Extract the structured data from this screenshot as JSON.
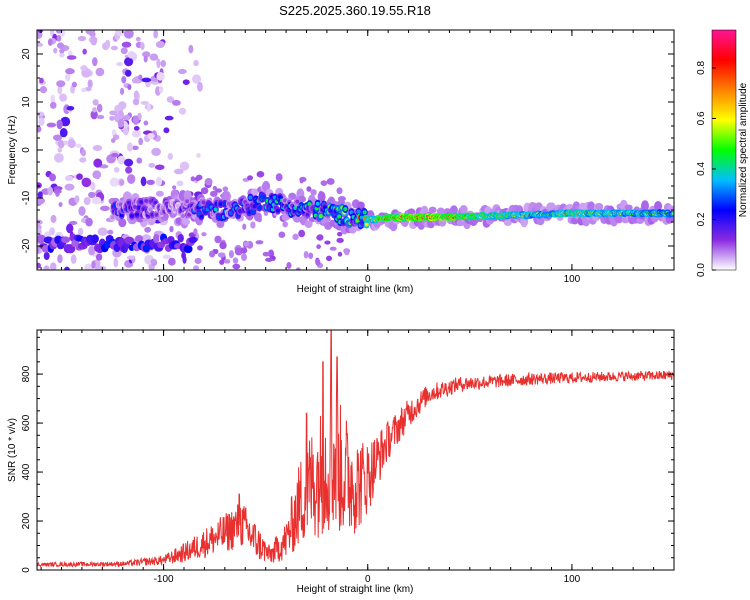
{
  "title": "S225.2025.360.19.55.R18",
  "chart_data": [
    {
      "type": "heatmap",
      "name": "spectrogram",
      "xlabel": "Height of straight line (km)",
      "ylabel": "Frequency (Hz)",
      "xlim": [
        -162,
        150
      ],
      "ylim": [
        -25,
        25
      ],
      "xticks": [
        -100,
        0,
        100
      ],
      "yticks": [
        -20,
        -10,
        0,
        10,
        20
      ],
      "xtick_labels": [
        "-100",
        "0",
        "100"
      ],
      "ytick_labels": [
        "-20",
        "-10",
        "0",
        "10",
        "20"
      ],
      "colorbar": {
        "label": "Normalized spectral amplitude",
        "range": [
          0.0,
          0.95
        ],
        "ticks": [
          0.0,
          0.2,
          0.4,
          0.6,
          0.8
        ],
        "tick_labels": [
          "0.0",
          "0.2",
          "0.4",
          "0.6",
          "0.8"
        ],
        "colors": [
          "#ffffff",
          "#8a2be2",
          "#0000ff",
          "#00bfff",
          "#00ff00",
          "#ffff00",
          "#ff8000",
          "#ff0000",
          "#ff1493"
        ]
      },
      "ridge": [
        {
          "x": -120,
          "f": -12.5,
          "amp": 0.2
        },
        {
          "x": -110,
          "f": -12.0,
          "amp": 0.15
        },
        {
          "x": -90,
          "f": -12.2,
          "amp": 0.15
        },
        {
          "x": -80,
          "f": -12.4,
          "amp": 0.3
        },
        {
          "x": -70,
          "f": -12.5,
          "amp": 0.25
        },
        {
          "x": -60,
          "f": -11.8,
          "amp": 0.3
        },
        {
          "x": -50,
          "f": -10.5,
          "amp": 0.35
        },
        {
          "x": -40,
          "f": -11.5,
          "amp": 0.3
        },
        {
          "x": -30,
          "f": -12.5,
          "amp": 0.35
        },
        {
          "x": -20,
          "f": -12.8,
          "amp": 0.4
        },
        {
          "x": -10,
          "f": -13.8,
          "amp": 0.45
        },
        {
          "x": 0,
          "f": -14.5,
          "amp": 0.6
        },
        {
          "x": 10,
          "f": -14.2,
          "amp": 0.8
        },
        {
          "x": 30,
          "f": -14.0,
          "amp": 0.85
        },
        {
          "x": 50,
          "f": -13.8,
          "amp": 0.7
        },
        {
          "x": 80,
          "f": -13.5,
          "amp": 0.55
        },
        {
          "x": 100,
          "f": -13.2,
          "amp": 0.6
        },
        {
          "x": 130,
          "f": -13.2,
          "amp": 0.55
        },
        {
          "x": 150,
          "f": -13.2,
          "amp": 0.5
        }
      ],
      "secondary_band": {
        "x_range": [
          -160,
          -85
        ],
        "f": -19.5,
        "amp": 0.2
      },
      "noise_region": {
        "x_range": [
          -162,
          -100
        ],
        "f_range": [
          -25,
          25
        ],
        "amp": 0.15
      }
    },
    {
      "type": "line",
      "name": "snr",
      "xlabel": "Height of straight line (km)",
      "ylabel": "SNR (10 * v/v)",
      "xlim": [
        -162,
        150
      ],
      "ylim": [
        0,
        980
      ],
      "xticks": [
        -100,
        0,
        100
      ],
      "yticks": [
        0,
        200,
        400,
        600,
        800
      ],
      "xtick_labels": [
        "-100",
        "0",
        "100"
      ],
      "ytick_labels": [
        "0",
        "200",
        "400",
        "600",
        "800"
      ],
      "color": "#e8302f",
      "envelope": [
        {
          "x": -162,
          "mean": 22,
          "amp": 8
        },
        {
          "x": -120,
          "mean": 25,
          "amp": 10
        },
        {
          "x": -100,
          "mean": 40,
          "amp": 20
        },
        {
          "x": -90,
          "mean": 70,
          "amp": 40
        },
        {
          "x": -80,
          "mean": 110,
          "amp": 60
        },
        {
          "x": -70,
          "mean": 150,
          "amp": 80
        },
        {
          "x": -62,
          "mean": 190,
          "amp": 100
        },
        {
          "x": -55,
          "mean": 120,
          "amp": 80
        },
        {
          "x": -48,
          "mean": 60,
          "amp": 40
        },
        {
          "x": -40,
          "mean": 120,
          "amp": 80
        },
        {
          "x": -32,
          "mean": 300,
          "amp": 200
        },
        {
          "x": -25,
          "mean": 380,
          "amp": 250
        },
        {
          "x": -18,
          "mean": 450,
          "amp": 300
        },
        {
          "x": -10,
          "mean": 380,
          "amp": 250
        },
        {
          "x": -5,
          "mean": 350,
          "amp": 200
        },
        {
          "x": 0,
          "mean": 380,
          "amp": 150
        },
        {
          "x": 10,
          "mean": 530,
          "amp": 80
        },
        {
          "x": 20,
          "mean": 640,
          "amp": 60
        },
        {
          "x": 30,
          "mean": 720,
          "amp": 40
        },
        {
          "x": 45,
          "mean": 760,
          "amp": 30
        },
        {
          "x": 80,
          "mean": 780,
          "amp": 25
        },
        {
          "x": 120,
          "mean": 790,
          "amp": 20
        },
        {
          "x": 150,
          "mean": 795,
          "amp": 20
        }
      ],
      "peaks": [
        {
          "x": -18,
          "y": 980
        },
        {
          "x": -15,
          "y": 870
        },
        {
          "x": -22,
          "y": 850
        },
        {
          "x": -63,
          "y": 310
        },
        {
          "x": -30,
          "y": 640
        }
      ]
    }
  ]
}
